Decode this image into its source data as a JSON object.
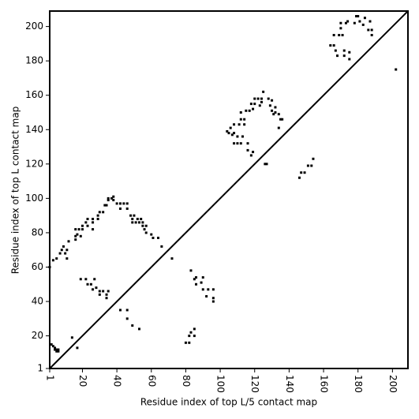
{
  "chart_data": {
    "type": "scatter",
    "xlabel": "Residue index of top L/5 contact map",
    "ylabel": "Residue index of top L contact map",
    "xlim": [
      1,
      209
    ],
    "ylim": [
      1,
      209
    ],
    "xticks": [
      1,
      20,
      40,
      60,
      80,
      100,
      120,
      140,
      160,
      180,
      200
    ],
    "yticks": [
      1,
      20,
      40,
      60,
      80,
      100,
      120,
      140,
      160,
      180,
      200
    ],
    "diagonal": true,
    "series": [
      {
        "color": "#000000",
        "x": [
          2,
          3,
          4,
          4,
          5,
          5,
          6,
          6,
          1,
          3,
          5,
          7,
          8,
          9,
          10,
          11,
          11,
          12,
          14,
          17,
          16,
          16,
          17,
          16,
          18,
          19,
          20,
          20,
          22,
          23,
          23,
          26,
          26,
          26,
          29,
          29,
          30,
          32,
          33,
          34,
          35,
          35,
          37,
          38,
          38,
          40,
          42,
          42,
          44,
          46,
          46,
          48,
          49,
          49,
          50,
          51,
          52,
          53,
          54,
          55,
          55,
          56,
          57,
          57,
          60,
          61,
          64,
          66,
          72,
          19,
          22,
          23,
          25,
          26,
          27,
          28,
          30,
          30,
          32,
          34,
          34,
          35,
          42,
          46,
          46,
          49,
          53,
          80,
          82,
          82,
          83,
          85,
          85,
          83,
          85,
          86,
          86,
          89,
          90,
          90,
          92,
          93,
          96,
          96,
          96,
          104,
          105,
          106,
          107,
          108,
          108,
          108,
          110,
          110,
          111,
          112,
          112,
          112,
          113,
          114,
          114,
          115,
          116,
          116,
          117,
          118,
          118,
          119,
          119,
          120,
          120,
          122,
          123,
          124,
          124,
          125,
          126,
          127,
          128,
          129,
          130,
          130,
          131,
          132,
          132,
          134,
          134,
          135,
          136,
          146,
          147,
          149,
          151,
          154,
          153,
          164,
          166,
          166,
          167,
          168,
          169,
          170,
          170,
          171,
          172,
          172,
          173,
          174,
          175,
          175,
          178,
          179,
          180,
          181,
          183,
          184,
          186,
          187,
          188,
          188,
          202
        ],
        "y": [
          15,
          14,
          13,
          12,
          11,
          12,
          11,
          12,
          60,
          64,
          65,
          68,
          70,
          72,
          68,
          65,
          70,
          75,
          19,
          13,
          76,
          78,
          79,
          82,
          82,
          78,
          82,
          84,
          86,
          84,
          88,
          82,
          86,
          88,
          88,
          90,
          92,
          92,
          96,
          96,
          99,
          100,
          100,
          101,
          99,
          97,
          94,
          97,
          97,
          94,
          97,
          90,
          86,
          88,
          90,
          86,
          88,
          86,
          88,
          84,
          86,
          82,
          80,
          84,
          79,
          77,
          77,
          72,
          65,
          53,
          53,
          50,
          50,
          47,
          53,
          48,
          46,
          44,
          46,
          42,
          44,
          46,
          35,
          35,
          30,
          26,
          24,
          16,
          16,
          20,
          22,
          24,
          20,
          58,
          53,
          54,
          50,
          51,
          54,
          47,
          43,
          47,
          47,
          42,
          40,
          139,
          138,
          141,
          137,
          143,
          138,
          132,
          136,
          132,
          143,
          146,
          150,
          132,
          136,
          143,
          146,
          151,
          132,
          128,
          151,
          155,
          125,
          152,
          127,
          155,
          158,
          158,
          154,
          156,
          158,
          162,
          120,
          120,
          158,
          154,
          157,
          151,
          149,
          153,
          150,
          149,
          141,
          146,
          146,
          112,
          115,
          115,
          119,
          123,
          119,
          189,
          195,
          189,
          186,
          183,
          195,
          199,
          202,
          195,
          186,
          183,
          202,
          203,
          185,
          181,
          202,
          206,
          206,
          203,
          201,
          205,
          198,
          203,
          198,
          195,
          175
        ]
      }
    ]
  }
}
